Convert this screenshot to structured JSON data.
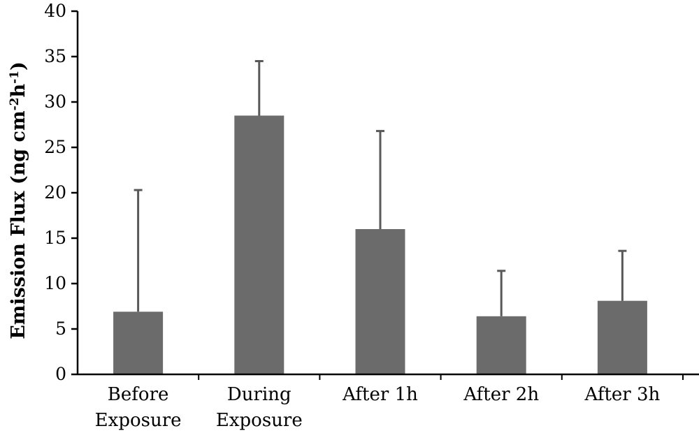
{
  "chart_data": {
    "type": "bar",
    "categories": [
      [
        "Before",
        "Exposure"
      ],
      [
        "During",
        "Exposure"
      ],
      [
        "After 1h"
      ],
      [
        "After 2h"
      ],
      [
        "After 3h"
      ]
    ],
    "values": [
      6.9,
      28.5,
      16.0,
      6.4,
      8.1
    ],
    "error_upper": [
      20.3,
      34.5,
      26.8,
      11.4,
      13.6
    ],
    "ylabel": {
      "text": "Emission Flux (ng cm",
      "sup1": "-2",
      "mid": "h",
      "sup2": "-1",
      "close": ")"
    },
    "ylim": [
      0,
      40
    ],
    "yticks": [
      0,
      5,
      10,
      15,
      20,
      25,
      30,
      35,
      40
    ],
    "grid": false,
    "legend": "none",
    "bar_color": "#6b6b6b",
    "error_color": "#595959",
    "axis_color": "#000000"
  }
}
